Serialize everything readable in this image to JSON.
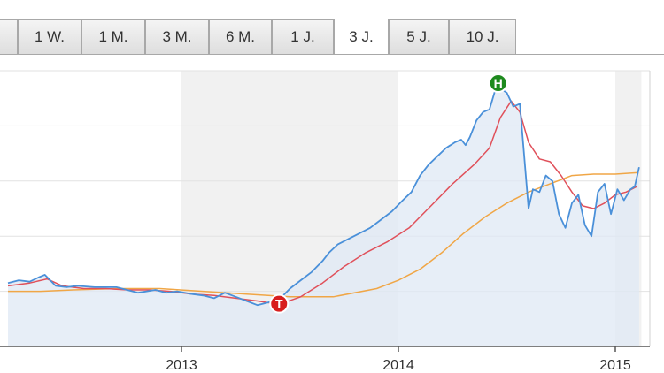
{
  "tabs": [
    {
      "label": "1 W."
    },
    {
      "label": "1 M."
    },
    {
      "label": "3 M."
    },
    {
      "label": "6 M."
    },
    {
      "label": "1 J."
    },
    {
      "label": "3 J.",
      "active": true
    },
    {
      "label": "5 J."
    },
    {
      "label": "10 J."
    }
  ],
  "colors": {
    "price": "#4a90d9",
    "price_fill": "#dfe8f4",
    "ma_short": "#e0505a",
    "ma_long": "#f0a646",
    "high_marker": "#1e8a1e",
    "low_marker": "#d81e1e",
    "band": "#f1f1f1"
  },
  "chart_data": {
    "type": "area",
    "x_unit": "year",
    "xlim": [
      2012.2,
      2015.12
    ],
    "ylim": [
      0,
      100
    ],
    "x_ticks": [
      2013,
      2014,
      2015
    ],
    "x_tick_labels": [
      "2013",
      "2014",
      "2015"
    ],
    "grid": true,
    "shaded_bands": [
      [
        2013.0,
        2014.0
      ],
      [
        2015.0,
        2015.12
      ]
    ],
    "markers": [
      {
        "label": "H",
        "x": 2014.46,
        "y": 95.5,
        "kind": "high"
      },
      {
        "label": "T",
        "x": 2013.45,
        "y": 15.5,
        "kind": "low"
      }
    ],
    "series": [
      {
        "role": "price",
        "x": [
          2012.2,
          2012.25,
          2012.3,
          2012.34,
          2012.37,
          2012.42,
          2012.47,
          2012.52,
          2012.6,
          2012.7,
          2012.8,
          2012.88,
          2012.93,
          2012.98,
          2013.05,
          2013.1,
          2013.15,
          2013.2,
          2013.25,
          2013.3,
          2013.35,
          2013.4,
          2013.45,
          2013.5,
          2013.55,
          2013.6,
          2013.65,
          2013.68,
          2013.72,
          2013.77,
          2013.82,
          2013.87,
          2013.92,
          2013.97,
          2014.02,
          2014.06,
          2014.1,
          2014.14,
          2014.18,
          2014.22,
          2014.26,
          2014.29,
          2014.31,
          2014.33,
          2014.36,
          2014.39,
          2014.42,
          2014.45,
          2014.48,
          2014.5,
          2014.53,
          2014.56,
          2014.58,
          2014.6,
          2014.62,
          2014.65,
          2014.68,
          2014.71,
          2014.74,
          2014.77,
          2014.8,
          2014.83,
          2014.86,
          2014.89,
          2014.92,
          2014.95,
          2014.98,
          2015.01,
          2015.04,
          2015.07,
          2015.09,
          2015.11
        ],
        "y": [
          23,
          24,
          23.5,
          25,
          26,
          22,
          21.5,
          22,
          21.5,
          21.5,
          19.5,
          20.5,
          19.5,
          20,
          19,
          18.5,
          17.5,
          19.5,
          18,
          16.5,
          15,
          16,
          17,
          21,
          24,
          27,
          31,
          34,
          37,
          39,
          41,
          43,
          46,
          49,
          53,
          56,
          62,
          66,
          69,
          72,
          74,
          75,
          73,
          76,
          82,
          85,
          86,
          94,
          93,
          92,
          87,
          88,
          69,
          50,
          57,
          56,
          62,
          60,
          48,
          43,
          52,
          55,
          44,
          40,
          56,
          59,
          48,
          57,
          53,
          57,
          58,
          65
        ]
      },
      {
        "role": "ma_short",
        "x": [
          2012.2,
          2012.3,
          2012.38,
          2012.45,
          2012.55,
          2012.65,
          2012.75,
          2012.85,
          2012.95,
          2013.05,
          2013.15,
          2013.25,
          2013.35,
          2013.45,
          2013.55,
          2013.65,
          2013.75,
          2013.85,
          2013.95,
          2014.05,
          2014.15,
          2014.25,
          2014.35,
          2014.42,
          2014.47,
          2014.52,
          2014.56,
          2014.6,
          2014.65,
          2014.7,
          2014.75,
          2014.8,
          2014.85,
          2014.9,
          2014.95,
          2015.0,
          2015.05,
          2015.1
        ],
        "y": [
          22,
          23,
          24.5,
          22,
          21,
          21,
          20.5,
          20.5,
          20,
          19,
          18.5,
          17.5,
          16.5,
          15.3,
          18,
          23,
          29,
          34,
          38,
          43,
          51,
          59,
          66,
          72,
          83,
          89,
          85,
          74,
          68,
          67,
          62,
          56,
          51,
          50,
          52,
          55,
          56,
          58
        ]
      },
      {
        "role": "ma_long",
        "x": [
          2012.2,
          2012.35,
          2012.5,
          2012.7,
          2012.9,
          2013.1,
          2013.3,
          2013.5,
          2013.7,
          2013.9,
          2014.0,
          2014.1,
          2014.2,
          2014.3,
          2014.4,
          2014.5,
          2014.6,
          2014.7,
          2014.8,
          2014.9,
          2015.0,
          2015.1
        ],
        "y": [
          20,
          20,
          20.5,
          21,
          21,
          20,
          19,
          18,
          18,
          21,
          24,
          28,
          34,
          41,
          47,
          52,
          56,
          59,
          62,
          62.5,
          62.5,
          63
        ]
      }
    ]
  }
}
